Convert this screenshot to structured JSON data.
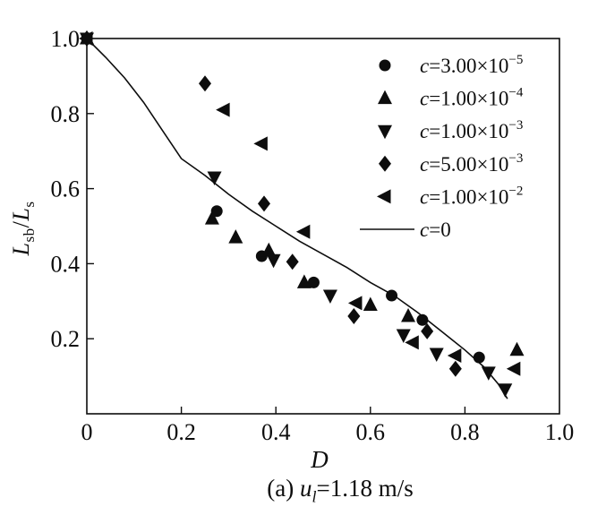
{
  "figure": {
    "background": "#ffffff",
    "ink": "#0d0d0d"
  },
  "axes": {
    "x": {
      "label": "D",
      "range": [
        0,
        1.0
      ],
      "ticks": [
        {
          "value": 0,
          "label": "0"
        },
        {
          "value": 0.2,
          "label": "0.2"
        },
        {
          "value": 0.4,
          "label": "0.4"
        },
        {
          "value": 0.6,
          "label": "0.6"
        },
        {
          "value": 0.8,
          "label": "0.8"
        },
        {
          "value": 1.0,
          "label": "1.0"
        }
      ]
    },
    "y": {
      "label": {
        "l1": "L",
        "s1": "sb",
        "sep": "/",
        "l2": "L",
        "s2": "s"
      },
      "range": [
        0,
        1.0
      ],
      "ticks": [
        {
          "value": 0.2,
          "label": "0.2"
        },
        {
          "value": 0.4,
          "label": "0.4"
        },
        {
          "value": 0.6,
          "label": "0.6"
        },
        {
          "value": 0.8,
          "label": "0.8"
        },
        {
          "value": 1.0,
          "label": "1.0"
        }
      ]
    }
  },
  "legend": {
    "entries": [
      {
        "marker": "circle",
        "variable": "c",
        "value": "=3.00×10",
        "exponent": "−5"
      },
      {
        "marker": "triangle-up",
        "variable": "c",
        "value": "=1.00×10",
        "exponent": "−4"
      },
      {
        "marker": "triangle-down",
        "variable": "c",
        "value": "=1.00×10",
        "exponent": "−3"
      },
      {
        "marker": "diamond",
        "variable": "c",
        "value": "=5.00×10",
        "exponent": "−3"
      },
      {
        "marker": "triangle-left",
        "variable": "c",
        "value": "=1.00×10",
        "exponent": "−2"
      },
      {
        "marker": "line",
        "variable": "c",
        "value": "=0",
        "exponent": ""
      }
    ]
  },
  "caption": {
    "prefix": "(a) ",
    "variable": "u",
    "subscript": "l",
    "rest": "=1.18 m/s"
  },
  "chart_data": {
    "type": "scatter",
    "title": "",
    "xlabel": "D",
    "ylabel": "Lsb/Ls",
    "xlim": [
      0,
      1.0
    ],
    "ylim": [
      0,
      1.0
    ],
    "grid": false,
    "legend_position": "upper right inside",
    "series": [
      {
        "name": "c=3.00e-5",
        "marker": "circle",
        "points": [
          [
            0,
            1.0
          ],
          [
            0.275,
            0.54
          ],
          [
            0.37,
            0.42
          ],
          [
            0.48,
            0.35
          ],
          [
            0.645,
            0.315
          ],
          [
            0.71,
            0.25
          ],
          [
            0.83,
            0.15
          ]
        ]
      },
      {
        "name": "c=1.00e-4",
        "marker": "triangle-up",
        "points": [
          [
            0,
            1.0
          ],
          [
            0.265,
            0.52
          ],
          [
            0.315,
            0.47
          ],
          [
            0.385,
            0.435
          ],
          [
            0.46,
            0.35
          ],
          [
            0.6,
            0.29
          ],
          [
            0.68,
            0.26
          ],
          [
            0.91,
            0.17
          ]
        ]
      },
      {
        "name": "c=1.00e-3",
        "marker": "triangle-down",
        "points": [
          [
            0,
            1.0
          ],
          [
            0.27,
            0.63
          ],
          [
            0.395,
            0.41
          ],
          [
            0.515,
            0.315
          ],
          [
            0.67,
            0.21
          ],
          [
            0.74,
            0.16
          ],
          [
            0.85,
            0.11
          ],
          [
            0.885,
            0.065
          ]
        ]
      },
      {
        "name": "c=5.00e-3",
        "marker": "diamond",
        "points": [
          [
            0,
            1.0
          ],
          [
            0.25,
            0.88
          ],
          [
            0.375,
            0.56
          ],
          [
            0.435,
            0.405
          ],
          [
            0.565,
            0.26
          ],
          [
            0.72,
            0.22
          ],
          [
            0.78,
            0.12
          ]
        ]
      },
      {
        "name": "c=1.00e-2",
        "marker": "triangle-left",
        "points": [
          [
            0,
            1.0
          ],
          [
            0.29,
            0.81
          ],
          [
            0.37,
            0.72
          ],
          [
            0.46,
            0.485
          ],
          [
            0.57,
            0.295
          ],
          [
            0.69,
            0.19
          ],
          [
            0.78,
            0.155
          ],
          [
            0.905,
            0.12
          ]
        ]
      }
    ],
    "line_series": {
      "name": "c=0",
      "points": [
        [
          0,
          1.0
        ],
        [
          0.04,
          0.95
        ],
        [
          0.08,
          0.895
        ],
        [
          0.12,
          0.83
        ],
        [
          0.16,
          0.755
        ],
        [
          0.2,
          0.68
        ],
        [
          0.25,
          0.635
        ],
        [
          0.3,
          0.585
        ],
        [
          0.35,
          0.54
        ],
        [
          0.4,
          0.5
        ],
        [
          0.45,
          0.46
        ],
        [
          0.5,
          0.425
        ],
        [
          0.55,
          0.39
        ],
        [
          0.6,
          0.35
        ],
        [
          0.65,
          0.315
        ],
        [
          0.7,
          0.27
        ],
        [
          0.75,
          0.22
        ],
        [
          0.8,
          0.17
        ],
        [
          0.84,
          0.125
        ],
        [
          0.87,
          0.08
        ],
        [
          0.89,
          0.04
        ]
      ]
    }
  }
}
